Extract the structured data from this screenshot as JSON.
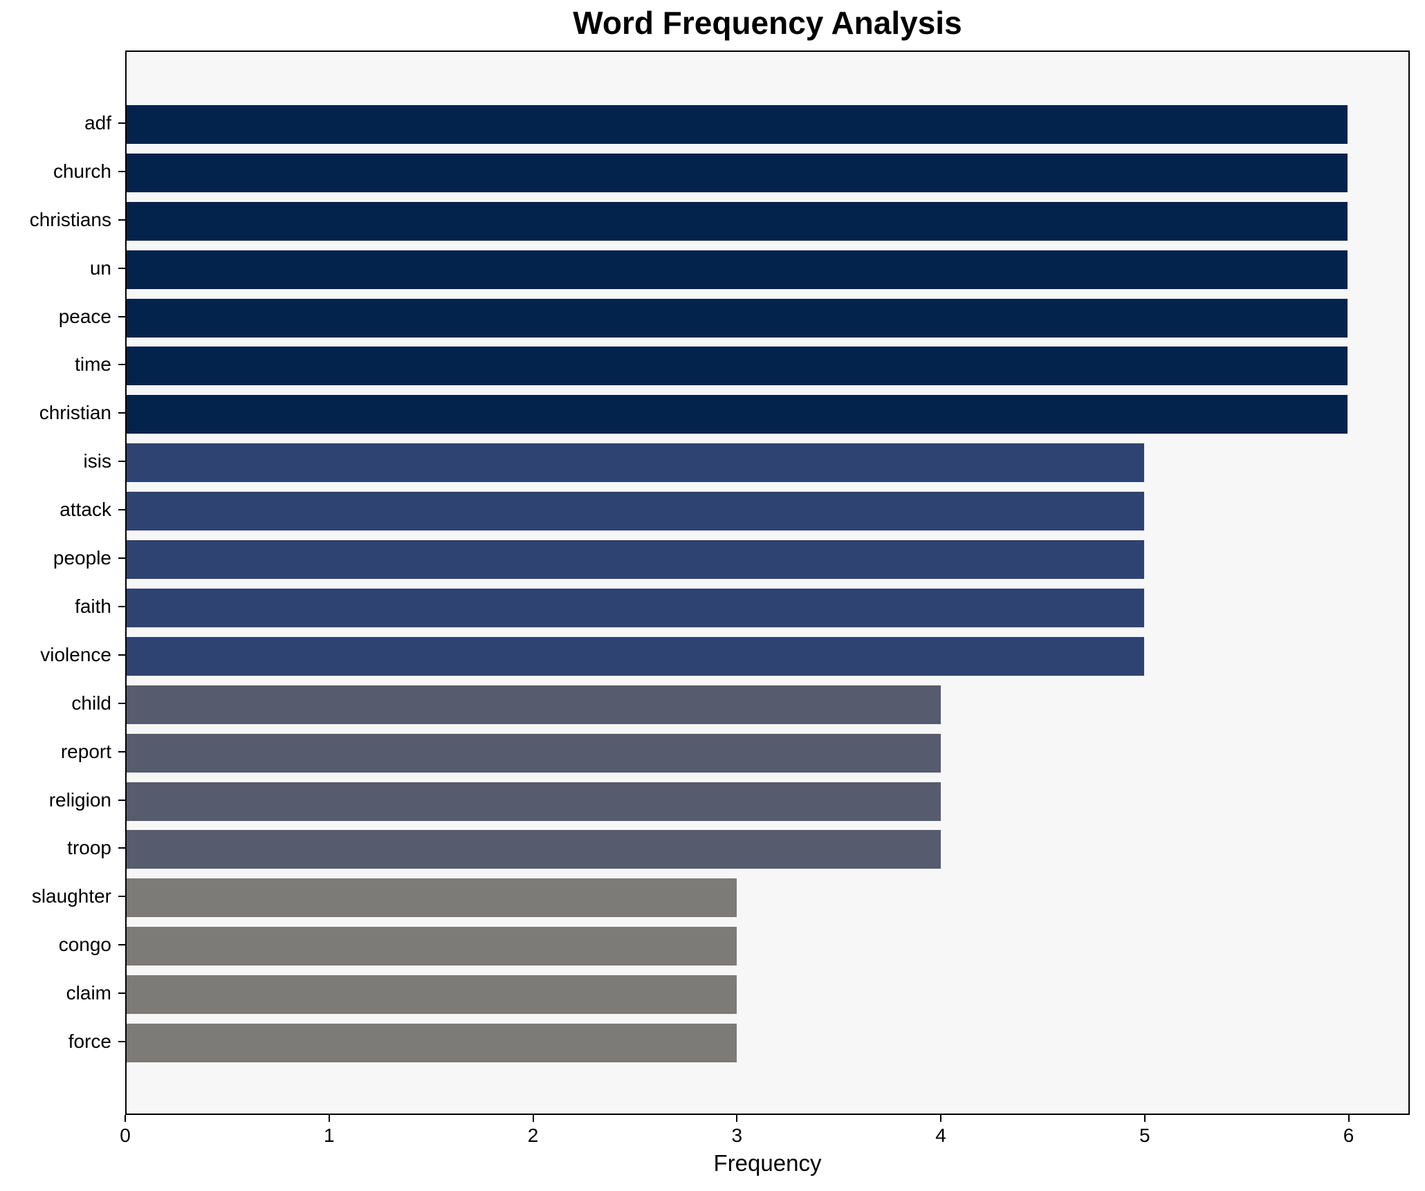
{
  "chart_data": {
    "type": "bar",
    "orientation": "horizontal",
    "title": "Word Frequency Analysis",
    "xlabel": "Frequency",
    "ylabel": "",
    "categories": [
      "adf",
      "church",
      "christians",
      "un",
      "peace",
      "time",
      "christian",
      "isis",
      "attack",
      "people",
      "faith",
      "violence",
      "child",
      "report",
      "religion",
      "troop",
      "slaughter",
      "congo",
      "claim",
      "force"
    ],
    "values": [
      6,
      6,
      6,
      6,
      6,
      6,
      6,
      5,
      5,
      5,
      5,
      5,
      4,
      4,
      4,
      4,
      3,
      3,
      3,
      3
    ],
    "bar_colors": [
      "#03234d",
      "#03234d",
      "#03234d",
      "#03234d",
      "#03234d",
      "#03234d",
      "#03234d",
      "#2f4372",
      "#2f4372",
      "#2f4372",
      "#2f4372",
      "#2f4372",
      "#565c6d",
      "#565c6d",
      "#565c6d",
      "#565c6d",
      "#7c7b77",
      "#7c7b77",
      "#7c7b77",
      "#7c7b77"
    ],
    "xlim": [
      0,
      6.3
    ],
    "xticks": [
      "0",
      "1",
      "2",
      "3",
      "4",
      "5",
      "6"
    ],
    "grid": false,
    "plot_background": "#f7f7f7",
    "figure_background": "#ffffff",
    "spine_color": "#000000",
    "text_color": "#000000"
  }
}
